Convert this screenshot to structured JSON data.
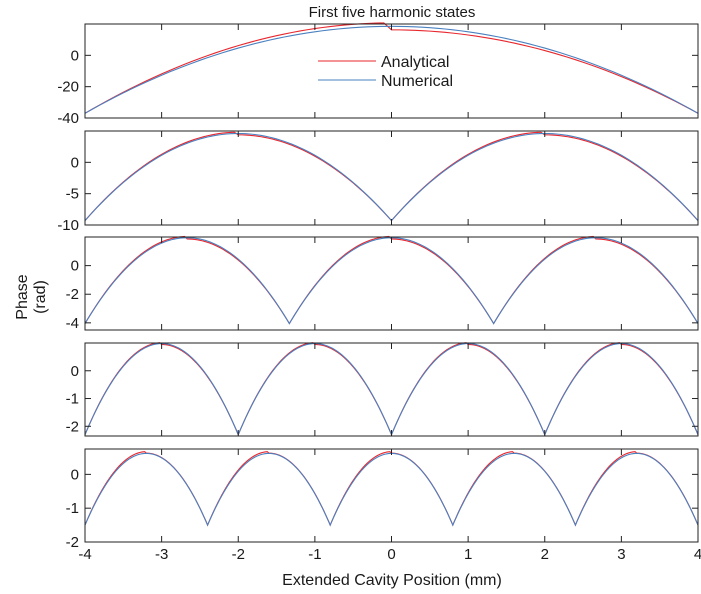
{
  "figure": {
    "title": "First five harmonic states",
    "xlabel": "Extended Cavity Position (mm)",
    "ylabel_line1": "Phase",
    "ylabel_line2": "(rad)"
  },
  "legend": {
    "placement": "top-center of first panel",
    "entries": [
      {
        "label": "Analytical",
        "color": "#e8272e"
      },
      {
        "label": "Numerical",
        "color": "#4a80c0"
      }
    ]
  },
  "colors": {
    "analytical": "#e8272e",
    "numerical": "#4a80c0",
    "axes": "#222222"
  },
  "chart_data": [
    {
      "type": "line",
      "harmonic": 1,
      "xlim": [
        -4,
        4
      ],
      "ylim": [
        -40,
        20
      ],
      "xticks": [
        -4,
        -3,
        -2,
        -1,
        0,
        1,
        2,
        3,
        4
      ],
      "yticks": [
        -40,
        -20,
        0
      ],
      "ytick_labels": [
        "-40",
        "-20",
        "0"
      ],
      "lobe_edges": [
        -4,
        4
      ],
      "series": [
        {
          "name": "Analytical",
          "peak": 18.5,
          "min": -37,
          "shift": 0.08
        },
        {
          "name": "Numerical",
          "peak": 18.5,
          "min": -37,
          "shift": 0.0
        }
      ]
    },
    {
      "type": "line",
      "harmonic": 2,
      "xlim": [
        -4,
        4
      ],
      "ylim": [
        -10,
        5
      ],
      "xticks": [
        -4,
        -3,
        -2,
        -1,
        0,
        1,
        2,
        3,
        4
      ],
      "yticks": [
        -10,
        -5,
        0
      ],
      "ytick_labels": [
        "-10",
        "-5",
        "0"
      ],
      "lobe_edges": [
        -4,
        0,
        4
      ],
      "series": [
        {
          "name": "Analytical",
          "peak": 4.6,
          "min": -9.3,
          "shift": 0.03
        },
        {
          "name": "Numerical",
          "peak": 4.6,
          "min": -9.3,
          "shift": 0.0
        }
      ]
    },
    {
      "type": "line",
      "harmonic": 3,
      "xlim": [
        -4,
        4
      ],
      "ylim": [
        -4.5,
        2
      ],
      "xticks": [
        -4,
        -3,
        -2,
        -1,
        0,
        1,
        2,
        3,
        4
      ],
      "yticks": [
        -4,
        -2,
        0
      ],
      "ytick_labels": [
        "-4",
        "-2",
        "0"
      ],
      "lobe_edges": [
        -4,
        -1.333,
        1.333,
        4
      ],
      "series": [
        {
          "name": "Analytical",
          "peak": 1.95,
          "min": -4.05,
          "shift": 0.03
        },
        {
          "name": "Numerical",
          "peak": 1.95,
          "min": -4.05,
          "shift": 0.0
        }
      ]
    },
    {
      "type": "line",
      "harmonic": 4,
      "xlim": [
        -4,
        4
      ],
      "ylim": [
        -2.35,
        1
      ],
      "xticks": [
        -4,
        -3,
        -2,
        -1,
        0,
        1,
        2,
        3,
        4
      ],
      "yticks": [
        -2,
        -1,
        0
      ],
      "ytick_labels": [
        "-2",
        "-1",
        "0"
      ],
      "lobe_edges": [
        -4,
        -2,
        0,
        2,
        4
      ],
      "series": [
        {
          "name": "Analytical",
          "peak": 0.98,
          "min": -2.3,
          "shift": 0.02
        },
        {
          "name": "Numerical",
          "peak": 0.98,
          "min": -2.3,
          "shift": 0.0
        }
      ]
    },
    {
      "type": "line",
      "harmonic": 5,
      "xlim": [
        -4,
        4
      ],
      "ylim": [
        -2,
        0.75
      ],
      "xticks": [
        -4,
        -3,
        -2,
        -1,
        0,
        1,
        2,
        3,
        4
      ],
      "xtick_labels": [
        "-4",
        "-3",
        "-2",
        "-1",
        "0",
        "1",
        "2",
        "3",
        "4"
      ],
      "yticks": [
        -2,
        -1,
        0
      ],
      "ytick_labels": [
        "-2",
        "-1",
        "0"
      ],
      "lobe_edges": [
        -4,
        -2.4,
        -0.8,
        0.8,
        2.4,
        4
      ],
      "series": [
        {
          "name": "Analytical",
          "peak": 0.65,
          "min": -1.5,
          "shift": 0.02
        },
        {
          "name": "Numerical",
          "peak": 0.62,
          "min": -1.5,
          "shift": 0.0
        }
      ]
    }
  ]
}
